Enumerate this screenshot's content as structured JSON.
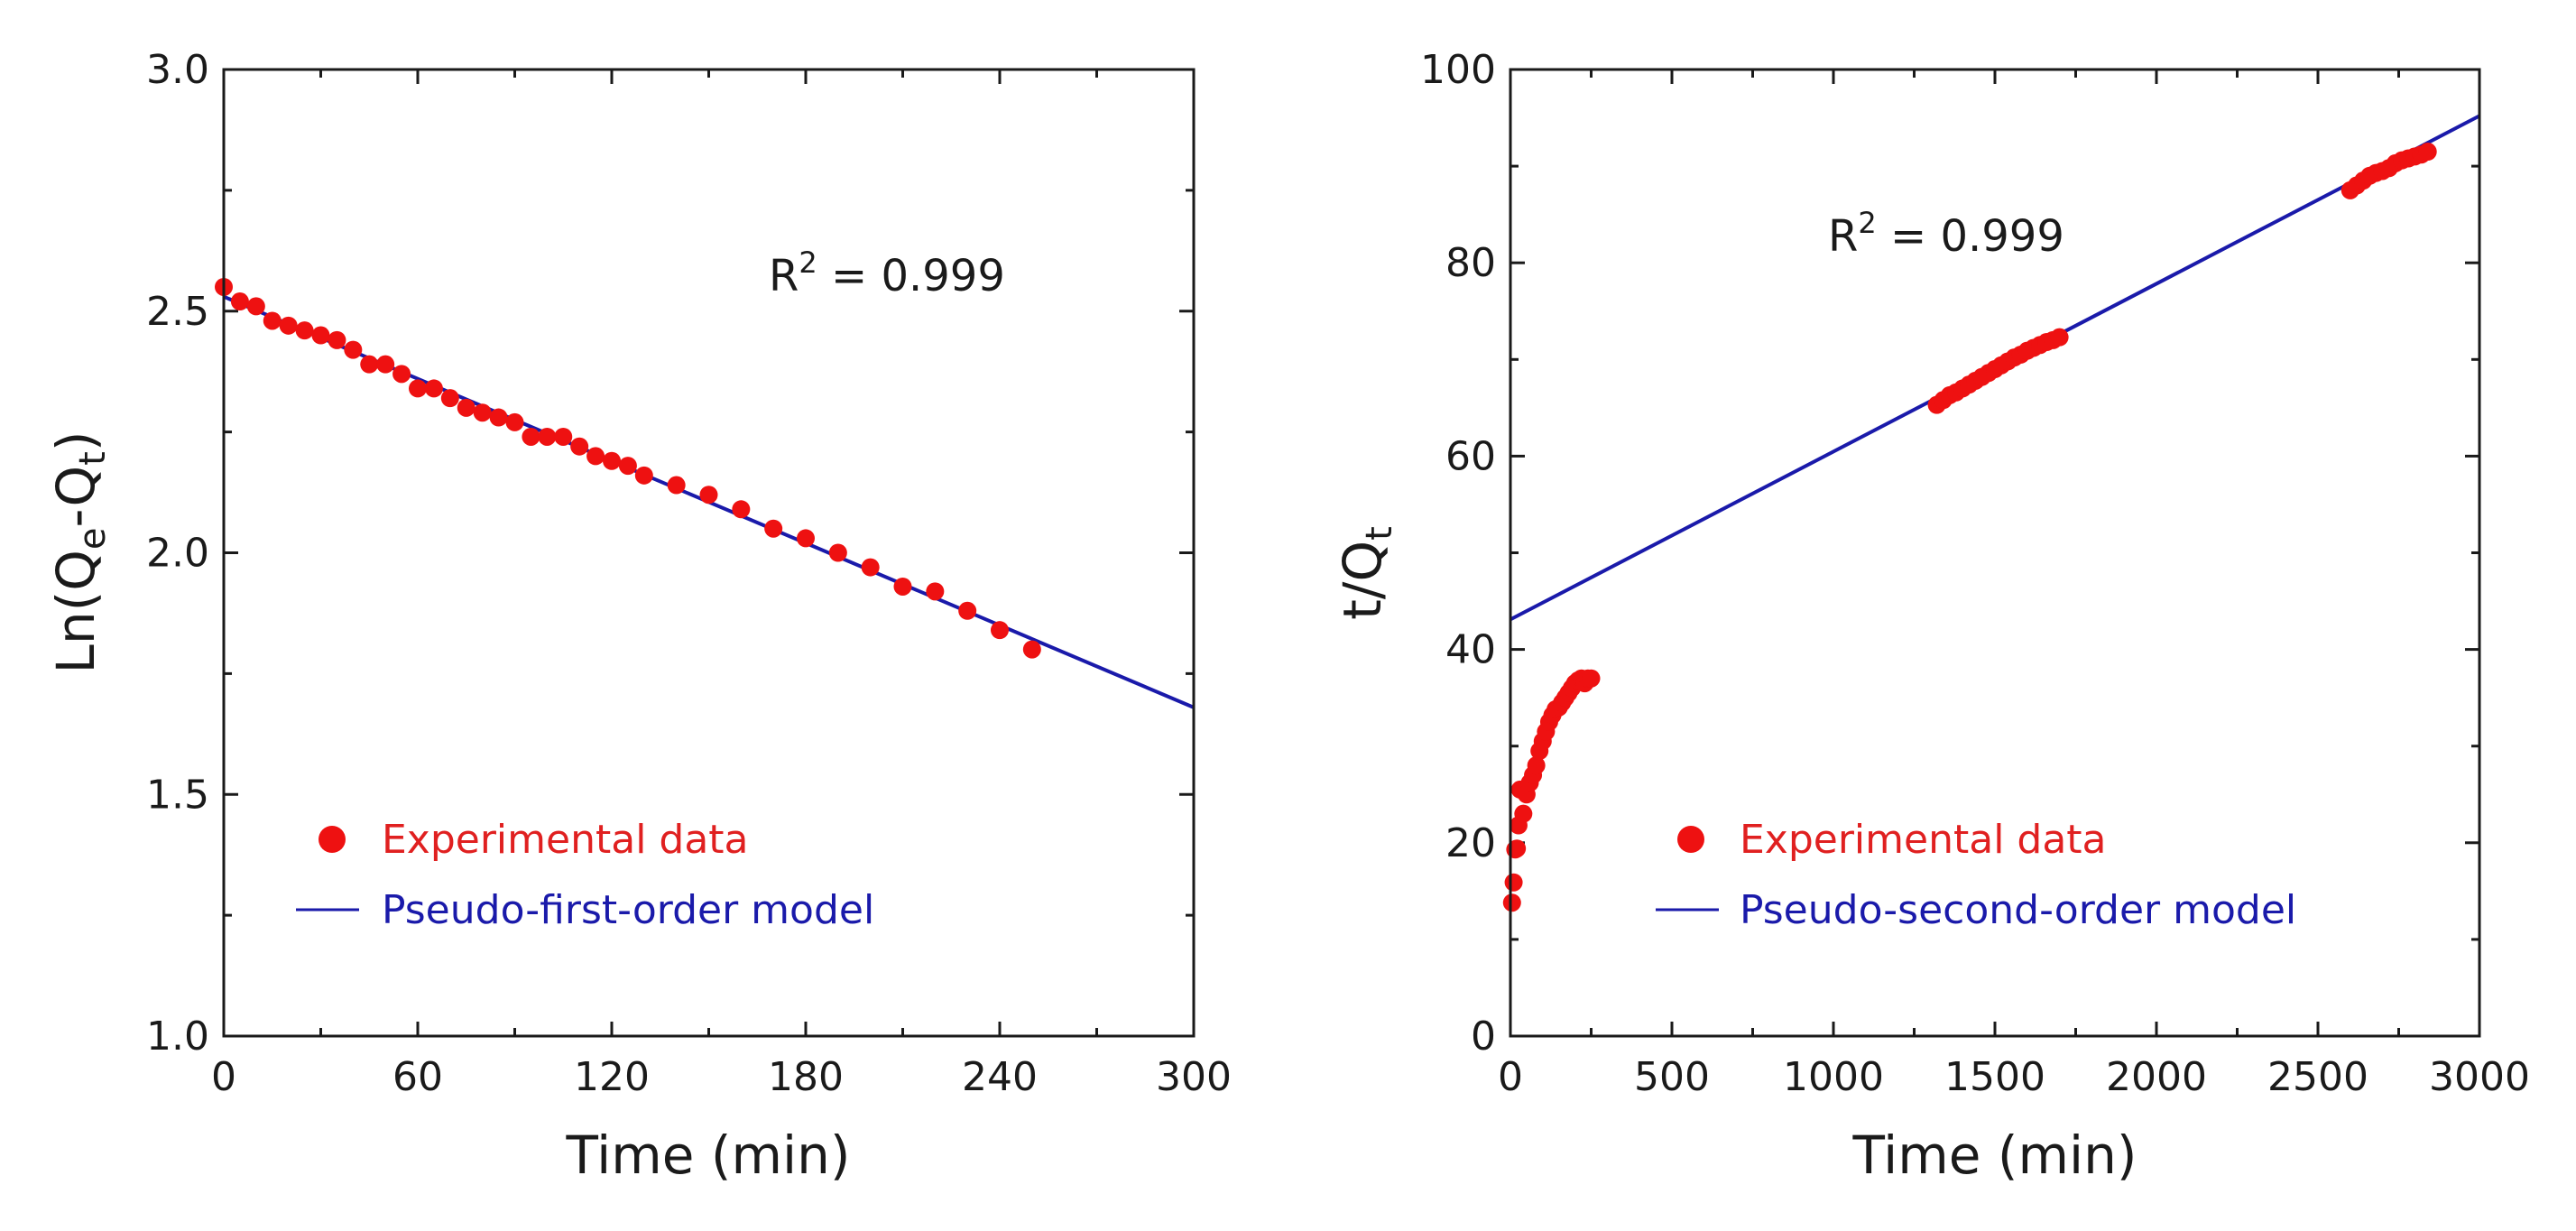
{
  "chart_data": [
    {
      "type": "scatter",
      "xlabel": "Time (min)",
      "ylabel": {
        "main": "Ln(Q",
        "sub1": "e",
        "mid": "-Q",
        "sub2": "t",
        "end": ")"
      },
      "xlim": [
        0,
        300
      ],
      "ylim": [
        1.0,
        3.0
      ],
      "xticks": [
        0,
        60,
        120,
        180,
        240,
        300
      ],
      "yticks": [
        1.0,
        1.5,
        2.0,
        2.5,
        3.0
      ],
      "ytick_labels": [
        "1.0",
        "1.5",
        "2.0",
        "2.5",
        "3.0"
      ],
      "annotation": {
        "prefix": "R",
        "sup": "2",
        "suffix": " = 0.999"
      },
      "legend": {
        "placement": "bottom-left",
        "scatter_label": "Experimental data",
        "line_label": "Pseudo-first-order model"
      },
      "colors": {
        "scatter": "#ee1111",
        "line": "#1a1aaa",
        "legend_scatter_text": "#e02020",
        "legend_line_text": "#1a1aaa"
      },
      "series": [
        {
          "name": "Experimental data",
          "kind": "scatter",
          "x": [
            0,
            5,
            10,
            15,
            20,
            25,
            30,
            35,
            40,
            45,
            50,
            55,
            60,
            65,
            70,
            75,
            80,
            85,
            90,
            95,
            100,
            105,
            110,
            115,
            120,
            125,
            130,
            140,
            150,
            160,
            170,
            180,
            190,
            200,
            210,
            220,
            230,
            240,
            250
          ],
          "y": [
            2.55,
            2.52,
            2.51,
            2.48,
            2.47,
            2.46,
            2.45,
            2.44,
            2.42,
            2.39,
            2.39,
            2.37,
            2.34,
            2.34,
            2.32,
            2.3,
            2.29,
            2.28,
            2.27,
            2.24,
            2.24,
            2.24,
            2.22,
            2.2,
            2.19,
            2.18,
            2.16,
            2.14,
            2.12,
            2.09,
            2.05,
            2.03,
            2.0,
            1.97,
            1.93,
            1.92,
            1.88,
            1.84,
            1.8
          ]
        },
        {
          "name": "Pseudo-first-order model",
          "kind": "line",
          "x": [
            0,
            300
          ],
          "y": [
            2.53,
            1.68
          ]
        }
      ]
    },
    {
      "type": "scatter",
      "xlabel": "Time (min)",
      "ylabel": {
        "main": "t/Q",
        "sub": "t"
      },
      "xlim": [
        0,
        3000
      ],
      "ylim": [
        0,
        100
      ],
      "xticks": [
        0,
        500,
        1000,
        1500,
        2000,
        2500,
        3000
      ],
      "yticks": [
        0,
        20,
        40,
        60,
        80,
        100
      ],
      "ytick_labels": [
        "0",
        "20",
        "40",
        "60",
        "80",
        "100"
      ],
      "annotation": {
        "prefix": "R",
        "sup": "2",
        "suffix": " = 0.999"
      },
      "legend": {
        "placement": "bottom-left",
        "scatter_label": "Experimental data",
        "line_label": "Pseudo-second-order model"
      },
      "colors": {
        "scatter": "#ee1111",
        "line": "#1a1aaa",
        "legend_scatter_text": "#e02020",
        "legend_line_text": "#1a1aaa"
      },
      "series": [
        {
          "name": "Experimental data",
          "kind": "scatter",
          "x": [
            5,
            10,
            15,
            20,
            25,
            30,
            40,
            50,
            60,
            70,
            80,
            90,
            100,
            110,
            120,
            130,
            140,
            150,
            160,
            170,
            180,
            190,
            200,
            210,
            220,
            230,
            240,
            250,
            1320,
            1340,
            1360,
            1380,
            1400,
            1420,
            1440,
            1460,
            1480,
            1500,
            1520,
            1540,
            1560,
            1580,
            1600,
            1620,
            1640,
            1660,
            1680,
            1700,
            2600,
            2620,
            2640,
            2660,
            2680,
            2700,
            2720,
            2740,
            2760,
            2780,
            2800,
            2820,
            2840
          ],
          "y": [
            13.8,
            15.9,
            19.3,
            19.4,
            21.8,
            25.5,
            23.0,
            25.0,
            26.2,
            27.0,
            28.0,
            29.5,
            30.5,
            31.5,
            32.5,
            33.2,
            33.8,
            34.0,
            34.5,
            35.0,
            35.5,
            36.0,
            36.5,
            36.8,
            37.0,
            36.5,
            37.0,
            37.0,
            65.3,
            65.8,
            66.3,
            66.6,
            67.0,
            67.4,
            67.8,
            68.2,
            68.6,
            69.0,
            69.4,
            69.8,
            70.2,
            70.5,
            70.9,
            71.2,
            71.5,
            71.8,
            72.0,
            72.3,
            87.5,
            88.0,
            88.5,
            89.0,
            89.3,
            89.5,
            89.8,
            90.3,
            90.6,
            90.8,
            91.0,
            91.2,
            91.5
          ]
        },
        {
          "name": "Pseudo-second-order model",
          "kind": "line",
          "x": [
            0,
            3000
          ],
          "y": [
            43.1,
            95.2
          ]
        }
      ]
    }
  ]
}
